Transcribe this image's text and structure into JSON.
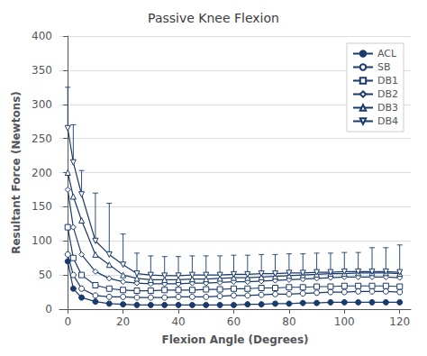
{
  "chart_data": {
    "type": "line",
    "title": "Passive Knee Flexion",
    "xlabel": "Flexion Angle (Degrees)",
    "ylabel": "Resultant Force (Newtons)",
    "xlim": [
      -3,
      124
    ],
    "ylim": [
      0,
      400
    ],
    "xticks": [
      0,
      20,
      40,
      60,
      80,
      100,
      120
    ],
    "yticks": [
      0,
      50,
      100,
      150,
      200,
      250,
      300,
      350,
      400
    ],
    "grid": true,
    "legend": "upper right",
    "x": [
      0,
      2,
      5,
      10,
      15,
      20,
      25,
      30,
      35,
      40,
      45,
      50,
      55,
      60,
      65,
      70,
      75,
      80,
      85,
      90,
      95,
      100,
      105,
      110,
      115,
      120
    ],
    "series": [
      {
        "name": "ACL",
        "color": "#1a3a6b",
        "marker": "circle",
        "values": [
          70,
          30,
          17,
          11,
          8,
          7,
          6,
          6,
          6,
          6,
          6,
          6,
          6,
          6,
          7,
          7,
          8,
          8,
          9,
          9,
          10,
          10,
          10,
          10,
          10,
          10
        ]
      },
      {
        "name": "SB",
        "color": "#1a3a6b",
        "marker": "circle_open",
        "values": [
          80,
          50,
          30,
          20,
          18,
          18,
          17,
          17,
          17,
          18,
          18,
          18,
          19,
          20,
          20,
          21,
          22,
          22,
          23,
          24,
          25,
          25,
          26,
          26,
          26,
          25
        ]
      },
      {
        "name": "DB1",
        "color": "#1a3a6b",
        "marker": "square_open",
        "values": [
          120,
          75,
          50,
          35,
          30,
          28,
          27,
          27,
          28,
          28,
          28,
          29,
          29,
          30,
          30,
          31,
          31,
          32,
          32,
          33,
          33,
          34,
          34,
          34,
          34,
          33
        ]
      },
      {
        "name": "DB2",
        "color": "#1a3a6b",
        "marker": "diamond_open",
        "values": [
          175,
          120,
          80,
          55,
          45,
          40,
          38,
          37,
          37,
          37,
          38,
          38,
          39,
          40,
          40,
          41,
          42,
          43,
          44,
          45,
          46,
          47,
          47,
          47,
          47,
          46
        ]
      },
      {
        "name": "DB3",
        "color": "#1a3a6b",
        "marker": "triangle_up_open",
        "values": [
          200,
          165,
          130,
          80,
          65,
          50,
          45,
          43,
          43,
          43,
          44,
          44,
          45,
          46,
          46,
          47,
          48,
          49,
          50,
          51,
          52,
          52,
          53,
          53,
          53,
          52
        ]
      },
      {
        "name": "DB4",
        "color": "#1a3a6b",
        "marker": "triangle_down_open",
        "values": [
          265,
          215,
          168,
          100,
          80,
          65,
          52,
          50,
          49,
          49,
          50,
          50,
          50,
          51,
          51,
          52,
          52,
          53,
          53,
          54,
          54,
          55,
          55,
          55,
          55,
          54
        ],
        "yerr_up": [
          60,
          55,
          35,
          70,
          75,
          45,
          30,
          28,
          28,
          28,
          28,
          28,
          28,
          28,
          28,
          28,
          28,
          28,
          28,
          28,
          28,
          28,
          28,
          35,
          35,
          40
        ]
      }
    ]
  }
}
